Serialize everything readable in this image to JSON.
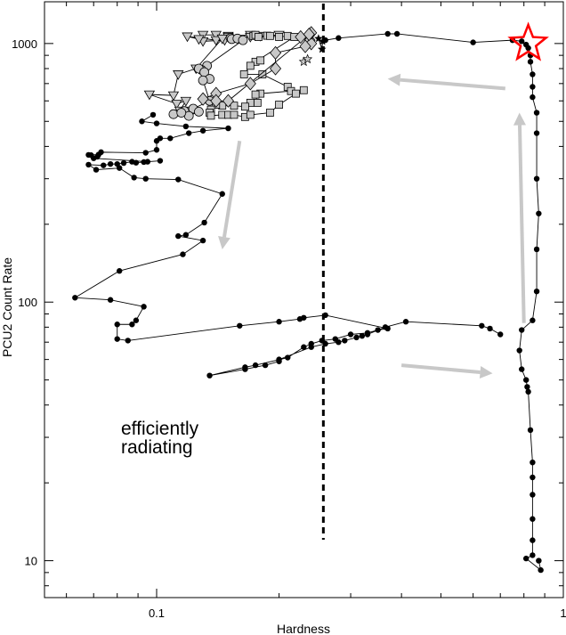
{
  "chart_data": {
    "type": "scatter",
    "title": "",
    "xlabel": "Hardness",
    "ylabel": "PCU2 Count Rate",
    "xscale": "log",
    "yscale": "log",
    "xlim": [
      0.053,
      1.0
    ],
    "ylim": [
      7.2,
      1450
    ],
    "xticks": [
      {
        "value": 0.1,
        "label": "0.1"
      },
      {
        "value": 1,
        "label": "1"
      }
    ],
    "yticks": [
      {
        "value": 10,
        "label": "10"
      },
      {
        "value": 100,
        "label": "100"
      },
      {
        "value": 1000,
        "label": "1000"
      }
    ],
    "grid": false,
    "vertical_line": {
      "x": 0.257,
      "style": "dashed"
    },
    "annotation": [
      "efficiently",
      "radiating"
    ],
    "star_marker": {
      "x": 0.82,
      "y": 1000,
      "color": "#ff0000"
    },
    "arrow_color": "#c8c8c8",
    "arrows": [
      {
        "from": [
          0.72,
          670
        ],
        "to": [
          0.37,
          730
        ]
      },
      {
        "from": [
          0.16,
          420
        ],
        "to": [
          0.145,
          160
        ]
      },
      {
        "from": [
          0.8,
          83
        ],
        "to": [
          0.78,
          540
        ]
      },
      {
        "from": [
          0.4,
          57
        ],
        "to": [
          0.67,
          53
        ]
      }
    ],
    "series": [
      {
        "marker": "filled-circle",
        "color": "#000000",
        "points": [
          [
            0.26,
            1030
          ],
          [
            0.28,
            1050
          ],
          [
            0.37,
            1090
          ],
          [
            0.39,
            1090
          ],
          [
            0.6,
            1010
          ],
          [
            0.75,
            1030
          ],
          [
            0.79,
            1020
          ],
          [
            0.81,
            990
          ],
          [
            0.82,
            960
          ],
          [
            0.83,
            900
          ],
          [
            0.83,
            850
          ],
          [
            0.84,
            760
          ],
          [
            0.84,
            680
          ],
          [
            0.84,
            620
          ],
          [
            0.86,
            540
          ],
          [
            0.86,
            450
          ],
          [
            0.86,
            300
          ],
          [
            0.87,
            220
          ],
          [
            0.86,
            160
          ],
          [
            0.86,
            110
          ],
          [
            0.84,
            85
          ],
          [
            0.79,
            78
          ],
          [
            0.78,
            65
          ],
          [
            0.79,
            55
          ],
          [
            0.81,
            50
          ],
          [
            0.815,
            47
          ],
          [
            0.82,
            45
          ],
          [
            0.83,
            32
          ],
          [
            0.84,
            24
          ],
          [
            0.84,
            21
          ],
          [
            0.84,
            18
          ],
          [
            0.84,
            14.5
          ],
          [
            0.84,
            12
          ],
          [
            0.84,
            10.5
          ],
          [
            0.81,
            10.2
          ],
          [
            0.88,
            9.2
          ],
          [
            0.87,
            10
          ]
        ]
      },
      {
        "marker": "filled-circle",
        "color": "#000000",
        "points": [
          [
            0.7,
            75
          ],
          [
            0.66,
            79
          ],
          [
            0.63,
            81
          ],
          [
            0.41,
            84
          ],
          [
            0.365,
            80
          ],
          [
            0.33,
            75
          ],
          [
            0.32,
            74
          ],
          [
            0.31,
            73
          ],
          [
            0.29,
            71
          ],
          [
            0.28,
            70
          ],
          [
            0.26,
            69
          ],
          [
            0.24,
            67
          ],
          [
            0.2,
            60
          ],
          [
            0.2,
            59
          ],
          [
            0.185,
            57
          ],
          [
            0.165,
            55
          ],
          [
            0.135,
            52
          ],
          [
            0.165,
            56
          ],
          [
            0.175,
            57
          ],
          [
            0.21,
            61
          ],
          [
            0.23,
            67
          ],
          [
            0.24,
            69
          ],
          [
            0.255,
            71
          ],
          [
            0.275,
            72
          ],
          [
            0.3,
            75
          ],
          [
            0.33,
            76
          ],
          [
            0.35,
            78
          ],
          [
            0.37,
            79
          ],
          [
            0.26,
            89
          ],
          [
            0.23,
            87
          ],
          [
            0.225,
            86
          ],
          [
            0.2,
            84
          ],
          [
            0.16,
            81
          ],
          [
            0.085,
            71
          ],
          [
            0.08,
            72
          ],
          [
            0.08,
            82
          ],
          [
            0.087,
            82
          ],
          [
            0.089,
            85
          ],
          [
            0.093,
            96
          ],
          [
            0.077,
            102
          ],
          [
            0.063,
            104
          ],
          [
            0.081,
            132
          ],
          [
            0.116,
            153
          ],
          [
            0.13,
            173
          ],
          [
            0.113,
            180
          ],
          [
            0.118,
            182
          ],
          [
            0.131,
            203
          ],
          [
            0.145,
            262
          ],
          [
            0.113,
            298
          ],
          [
            0.094,
            300
          ],
          [
            0.088,
            303
          ],
          [
            0.081,
            330
          ],
          [
            0.071,
            325
          ],
          [
            0.068,
            340
          ],
          [
            0.074,
            338
          ],
          [
            0.077,
            342
          ],
          [
            0.08,
            342
          ],
          [
            0.083,
            345
          ],
          [
            0.087,
            349
          ],
          [
            0.089,
            346
          ],
          [
            0.093,
            348
          ],
          [
            0.102,
            352
          ],
          [
            0.095,
            349
          ],
          [
            0.07,
            360
          ],
          [
            0.069,
            370
          ],
          [
            0.068,
            371
          ],
          [
            0.072,
            372
          ],
          [
            0.0715,
            365
          ],
          [
            0.073,
            380
          ],
          [
            0.094,
            378
          ],
          [
            0.1,
            388
          ],
          [
            0.1,
            420
          ],
          [
            0.102,
            430
          ],
          [
            0.108,
            430
          ],
          [
            0.12,
            450
          ],
          [
            0.13,
            460
          ],
          [
            0.15,
            470
          ],
          [
            0.118,
            478
          ],
          [
            0.1,
            491
          ],
          [
            0.092,
            500
          ],
          [
            0.098,
            530
          ]
        ]
      },
      {
        "marker": "open-triangle-down",
        "color": "#c8c8c8",
        "points": [
          [
            0.13,
            1080
          ],
          [
            0.14,
            1080
          ],
          [
            0.15,
            1070
          ],
          [
            0.17,
            1080
          ],
          [
            0.18,
            1070
          ],
          [
            0.2,
            1080
          ],
          [
            0.17,
            1060
          ],
          [
            0.15,
            1060
          ],
          [
            0.147,
            1030
          ],
          [
            0.13,
            1020
          ],
          [
            0.127,
            1040
          ],
          [
            0.119,
            1065
          ],
          [
            0.14,
            1030
          ],
          [
            0.145,
            1045
          ],
          [
            0.125,
            800
          ],
          [
            0.113,
            760
          ],
          [
            0.11,
            630
          ],
          [
            0.096,
            635
          ],
          [
            0.112,
            585
          ],
          [
            0.118,
            600
          ],
          [
            0.114,
            550
          ],
          [
            0.122,
            550
          ]
        ]
      },
      {
        "marker": "open-circle",
        "color": "#c8c8c8",
        "points": [
          [
            0.152,
            1050
          ],
          [
            0.153,
            1040
          ],
          [
            0.158,
            1045
          ],
          [
            0.163,
            1030
          ],
          [
            0.133,
            820
          ],
          [
            0.129,
            790
          ],
          [
            0.127,
            800
          ],
          [
            0.131,
            775
          ],
          [
            0.135,
            730
          ],
          [
            0.13,
            720
          ],
          [
            0.135,
            600
          ],
          [
            0.123,
            560
          ],
          [
            0.117,
            548
          ],
          [
            0.12,
            525
          ],
          [
            0.127,
            545
          ],
          [
            0.11,
            533
          ],
          [
            0.115,
            540
          ]
        ]
      },
      {
        "marker": "open-square",
        "color": "#c8c8c8",
        "points": [
          [
            0.173,
            1070
          ],
          [
            0.175,
            1080
          ],
          [
            0.178,
            1060
          ],
          [
            0.187,
            1072
          ],
          [
            0.19,
            1070
          ],
          [
            0.2,
            1060
          ],
          [
            0.21,
            1070
          ],
          [
            0.218,
            1060
          ],
          [
            0.175,
            850
          ],
          [
            0.18,
            860
          ],
          [
            0.17,
            820
          ],
          [
            0.164,
            760
          ],
          [
            0.182,
            760
          ],
          [
            0.21,
            680
          ],
          [
            0.214,
            655
          ],
          [
            0.18,
            640
          ],
          [
            0.175,
            635
          ],
          [
            0.177,
            590
          ],
          [
            0.17,
            590
          ],
          [
            0.165,
            570
          ],
          [
            0.155,
            575
          ],
          [
            0.145,
            575
          ],
          [
            0.14,
            580
          ],
          [
            0.136,
            555
          ],
          [
            0.135,
            540
          ],
          [
            0.136,
            526
          ],
          [
            0.145,
            530
          ],
          [
            0.15,
            530
          ],
          [
            0.155,
            530
          ],
          [
            0.165,
            520
          ],
          [
            0.17,
            530
          ],
          [
            0.19,
            540
          ],
          [
            0.2,
            580
          ],
          [
            0.22,
            640
          ],
          [
            0.23,
            660
          ]
        ]
      },
      {
        "marker": "open-diamond",
        "color": "#c8c8c8",
        "points": [
          [
            0.226,
            1060
          ],
          [
            0.238,
            1030
          ],
          [
            0.24,
            1000
          ],
          [
            0.232,
            975
          ],
          [
            0.196,
            920
          ],
          [
            0.196,
            800
          ],
          [
            0.17,
            700
          ],
          [
            0.14,
            640
          ],
          [
            0.13,
            610
          ],
          [
            0.14,
            600
          ],
          [
            0.15,
            600
          ],
          [
            0.24,
            1100
          ],
          [
            0.237,
            1085
          ]
        ]
      },
      {
        "marker": "filled-star",
        "color": "#000000",
        "points": [
          [
            0.256,
            1020
          ],
          [
            0.255,
            950
          ],
          [
            0.25,
            1045
          ]
        ]
      },
      {
        "marker": "open-star",
        "color": "#c8c8c8",
        "points": [
          [
            0.23,
            850
          ],
          [
            0.235,
            870
          ]
        ]
      }
    ]
  }
}
